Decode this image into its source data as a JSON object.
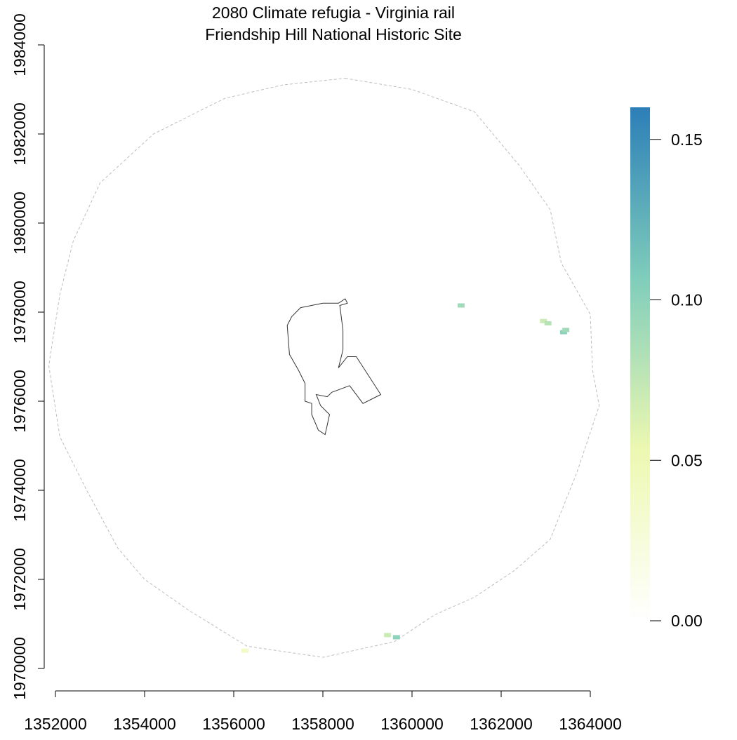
{
  "title": {
    "line1": "2080 Climate refugia - Virginia rail",
    "line2": "Friendship Hill National Historic Site"
  },
  "map_data": {
    "x_axis": {
      "ticks": [
        1352000,
        1354000,
        1356000,
        1358000,
        1360000,
        1362000,
        1364000
      ],
      "tick_labels": [
        "1352000",
        "1354000",
        "1356000",
        "1358000",
        "1360000",
        "1362000",
        "1364000"
      ]
    },
    "y_axis": {
      "ticks": [
        1970000,
        1972000,
        1974000,
        1976000,
        1978000,
        1980000,
        1982000,
        1984000
      ],
      "tick_labels": [
        "1970000",
        "1972000",
        "1974000",
        "1976000",
        "1978000",
        "1980000",
        "1982000",
        "1984000"
      ]
    },
    "legend": {
      "min": 0.0,
      "max": 0.16,
      "ticks": [
        0.0,
        0.05,
        0.1,
        0.15
      ],
      "tick_labels": [
        "0.00",
        "0.05",
        "0.10",
        "0.15"
      ],
      "colors": [
        "#ffffff",
        "#edf8b1",
        "#7fcdbb",
        "#2c7fb8"
      ]
    },
    "buffer_boundary": [
      [
        1358500,
        1983250
      ],
      [
        1360000,
        1983000
      ],
      [
        1361400,
        1982500
      ],
      [
        1362400,
        1981300
      ],
      [
        1363100,
        1980300
      ],
      [
        1363350,
        1979100
      ],
      [
        1364000,
        1977950
      ],
      [
        1364050,
        1976700
      ],
      [
        1364200,
        1975900
      ],
      [
        1363700,
        1974400
      ],
      [
        1363100,
        1972900
      ],
      [
        1362300,
        1972200
      ],
      [
        1361400,
        1971600
      ],
      [
        1360500,
        1971200
      ],
      [
        1359600,
        1970600
      ],
      [
        1358000,
        1970250
      ],
      [
        1356300,
        1970500
      ],
      [
        1355000,
        1971300
      ],
      [
        1354000,
        1972000
      ],
      [
        1353400,
        1972700
      ],
      [
        1352700,
        1974000
      ],
      [
        1352100,
        1975200
      ],
      [
        1351850,
        1976800
      ],
      [
        1352100,
        1978400
      ],
      [
        1352400,
        1979600
      ],
      [
        1353000,
        1980900
      ],
      [
        1354200,
        1982000
      ],
      [
        1355800,
        1982800
      ],
      [
        1357100,
        1983100
      ],
      [
        1358500,
        1983250
      ]
    ],
    "park_boundary": [
      [
        1357500,
        1978100
      ],
      [
        1358000,
        1978200
      ],
      [
        1358350,
        1978200
      ],
      [
        1358500,
        1978300
      ],
      [
        1358550,
        1978200
      ],
      [
        1358380,
        1978150
      ],
      [
        1358450,
        1977600
      ],
      [
        1358450,
        1977150
      ],
      [
        1358350,
        1976750
      ],
      [
        1358550,
        1977000
      ],
      [
        1358750,
        1977000
      ],
      [
        1359300,
        1976150
      ],
      [
        1358900,
        1975950
      ],
      [
        1358600,
        1976350
      ],
      [
        1358200,
        1976200
      ],
      [
        1358100,
        1976100
      ],
      [
        1357850,
        1976150
      ],
      [
        1357950,
        1975900
      ],
      [
        1358150,
        1975700
      ],
      [
        1358050,
        1975250
      ],
      [
        1357900,
        1975350
      ],
      [
        1357750,
        1975700
      ],
      [
        1357750,
        1975950
      ],
      [
        1357600,
        1976000
      ],
      [
        1357600,
        1976400
      ],
      [
        1357450,
        1976700
      ],
      [
        1357250,
        1977050
      ],
      [
        1357200,
        1977700
      ],
      [
        1357300,
        1977900
      ],
      [
        1357500,
        1978100
      ]
    ],
    "refugia_patches": [
      {
        "x": 1361100,
        "y": 1978150,
        "value": 0.09
      },
      {
        "x": 1362950,
        "y": 1977800,
        "value": 0.07
      },
      {
        "x": 1363050,
        "y": 1977750,
        "value": 0.08
      },
      {
        "x": 1363400,
        "y": 1977550,
        "value": 0.1
      },
      {
        "x": 1363450,
        "y": 1977600,
        "value": 0.09
      },
      {
        "x": 1359450,
        "y": 1970750,
        "value": 0.07
      },
      {
        "x": 1359650,
        "y": 1970700,
        "value": 0.1
      },
      {
        "x": 1356250,
        "y": 1970400,
        "value": 0.04
      }
    ]
  }
}
